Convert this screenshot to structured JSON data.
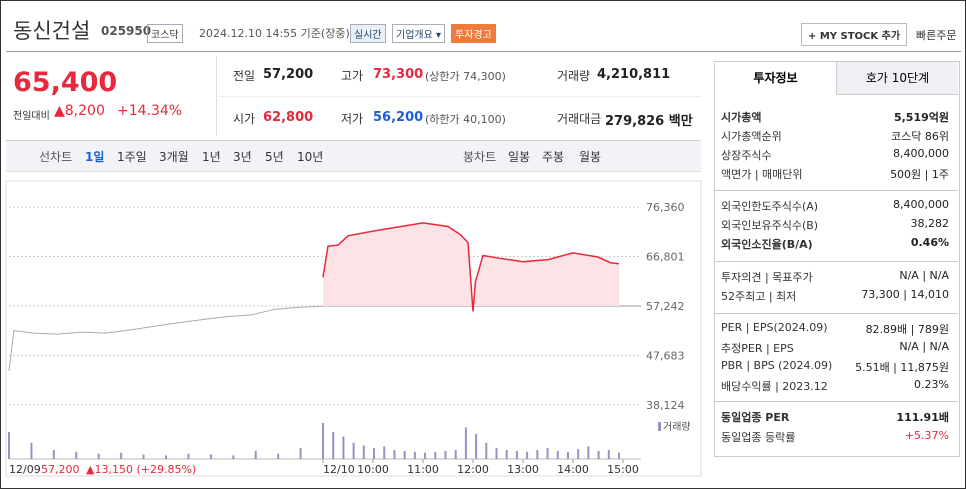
{
  "header": {
    "title": "동신건설",
    "code": "025950",
    "market": "코스닥",
    "datetime": "2024.12.10 14:55 기준(장중)",
    "buttons": [
      "실시간",
      "기업개요 ▾",
      "투자경고"
    ],
    "mystock": "+ MY STOCK 추가",
    "quick": "빠른주문"
  },
  "price": {
    "current": "65,400",
    "change_label": "전일대비",
    "change": "▲8,200",
    "rate": "+14.34%"
  },
  "stats": [
    [
      {
        "label": "전일",
        "value": "57,200"
      },
      {
        "label": "고가",
        "value": "73,300",
        "note": "(상한가 74,300)"
      },
      {
        "label": "거래량",
        "value": "4,210,811"
      }
    ],
    [
      {
        "label": "시가",
        "value": "62,800"
      },
      {
        "label": "저가",
        "value": "56,200",
        "note": "(하한가 40,100)"
      },
      {
        "label": "거래대금",
        "value": "279,826 백만"
      }
    ]
  ],
  "tabs": {
    "line_label": "선차트",
    "line": [
      "1일",
      "1주일",
      "3개월",
      "1년",
      "3년",
      "5년",
      "10년"
    ],
    "candle_label": "봉차트",
    "candle": [
      "일봉",
      "주봉",
      "월봉"
    ]
  },
  "chart": {
    "type": "line",
    "ylim": [
      38124,
      76360
    ],
    "yticks": [
      {
        "value": 76360,
        "label": "76,360"
      },
      {
        "value": 66801,
        "label": "66,801"
      },
      {
        "value": 57242,
        "label": "57,242"
      },
      {
        "value": 47683,
        "label": "47,683"
      },
      {
        "value": 38124,
        "label": "38,124"
      }
    ],
    "xticks": [
      {
        "value": 9,
        "label": "12/10"
      },
      {
        "value": 10,
        "label": "10:00"
      },
      {
        "value": 11,
        "label": "11:00"
      },
      {
        "value": 12,
        "label": "12:00"
      },
      {
        "value": 13,
        "label": "13:00"
      },
      {
        "value": 14,
        "label": "14:00"
      },
      {
        "value": 15,
        "label": "15:00"
      }
    ],
    "series": [
      {
        "color": "#aaaaaa",
        "x": [
          9,
          9.1,
          9.5,
          10,
          10.5,
          11,
          11.5,
          12,
          12.5,
          13,
          13.5,
          14,
          14.5,
          15,
          15.5
        ],
        "values": [
          44700,
          52500,
          52000,
          51800,
          52200,
          52000,
          52600,
          53300,
          54000,
          54600,
          55200,
          55500,
          56600,
          57000,
          57200
        ]
      },
      {
        "color": "#e8283c",
        "x": [
          9,
          9.1,
          9.3,
          9.5,
          10,
          10.5,
          11,
          11.5,
          11.75,
          11.9,
          12,
          12.05,
          12.2,
          12.5,
          13,
          13.5,
          14,
          14.5,
          14.75,
          14.92
        ],
        "values": [
          62800,
          68800,
          69000,
          70800,
          71700,
          72500,
          73300,
          72600,
          71000,
          69500,
          56200,
          62000,
          67000,
          66500,
          65800,
          66200,
          67500,
          66700,
          65600,
          65400
        ]
      }
    ],
    "volume_label": "거래량",
    "volume_prev": [
      30,
      18,
      10,
      8,
      6,
      7,
      5,
      4,
      6,
      5,
      4,
      9,
      6,
      12,
      14
    ],
    "volume_today": [
      40,
      30,
      25,
      18,
      15,
      12,
      14,
      10,
      9,
      8,
      7,
      8,
      9,
      10,
      35,
      28,
      18,
      12,
      10,
      9,
      8,
      10,
      12,
      9,
      8,
      11,
      14,
      9,
      10,
      7
    ],
    "footer": {
      "date": "12/09",
      "close": "57,200",
      "change": "▲13,150 (+29.85%)"
    }
  },
  "side": {
    "tabs": [
      "투자정보",
      "호가 10단계"
    ],
    "groups": [
      [
        {
          "label": "시가총액",
          "value": "5,519억원"
        },
        {
          "label": "시가총액순위",
          "value": "코스닥 86위"
        },
        {
          "label": "상장주식수",
          "value": "8,400,000"
        },
        {
          "label": "액면가 | 매매단위",
          "value": "500원 | 1주"
        }
      ],
      [
        {
          "label": "외국인한도주식수(A)",
          "value": "8,400,000"
        },
        {
          "label": "외국인보유주식수(B)",
          "value": "38,282"
        },
        {
          "label": "외국인소진율(B/A)",
          "value": "0.46%"
        }
      ],
      [
        {
          "label": "투자의견 | 목표주가",
          "value": "N/A | N/A"
        },
        {
          "label": "52주최고 | 최저",
          "value": "73,300 | 14,010"
        }
      ],
      [
        {
          "label": "PER | EPS(2024.09)",
          "value": "82.89배 | 789원"
        },
        {
          "label": "추정PER | EPS",
          "value": "N/A | N/A"
        },
        {
          "label": "PBR | BPS (2024.09)",
          "value": "5.51배 | 11,875원"
        },
        {
          "label": "배당수익률 | 2023.12",
          "value": "0.23%"
        }
      ],
      [
        {
          "label": "동일업종 PER",
          "value": "111.91배"
        },
        {
          "label": "동일업종 등락률",
          "value": "+5.37%"
        }
      ]
    ]
  }
}
